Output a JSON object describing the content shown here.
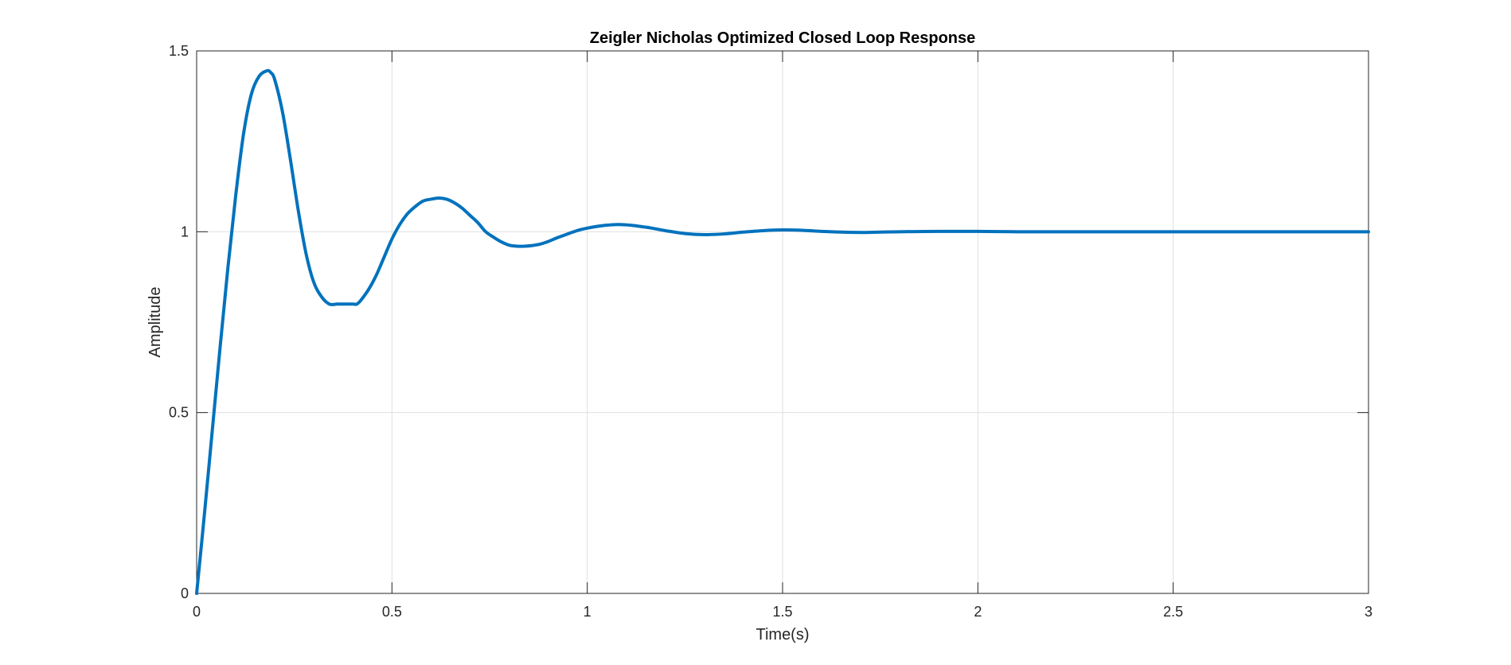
{
  "chart_data": {
    "type": "line",
    "title": "Zeigler Nicholas Optimized Closed Loop Response",
    "xlabel": "Time(s)",
    "ylabel": "Amplitude",
    "xlim": [
      0,
      3
    ],
    "ylim": [
      0,
      1.5
    ],
    "xticks": [
      0,
      0.5,
      1,
      1.5,
      2,
      2.5,
      3
    ],
    "xtick_labels": [
      "0",
      "0.5",
      "1",
      "1.5",
      "2",
      "2.5",
      "3"
    ],
    "yticks": [
      0,
      0.5,
      1,
      1.5
    ],
    "ytick_labels": [
      "0",
      "0.5",
      "1",
      "1.5"
    ],
    "grid": true,
    "line_color": "#0072BD",
    "series": [
      {
        "x": [
          0,
          0.02,
          0.04,
          0.06,
          0.08,
          0.1,
          0.12,
          0.14,
          0.16,
          0.18,
          0.19,
          0.2,
          0.22,
          0.24,
          0.26,
          0.28,
          0.3,
          0.32,
          0.34,
          0.36,
          0.38,
          0.4,
          0.41,
          0.42,
          0.44,
          0.46,
          0.48,
          0.5,
          0.52,
          0.54,
          0.56,
          0.58,
          0.6,
          0.62,
          0.64,
          0.66,
          0.68,
          0.7,
          0.72,
          0.74,
          0.76,
          0.78,
          0.8,
          0.82,
          0.84,
          0.86,
          0.88,
          0.9,
          0.92,
          0.94,
          0.96,
          0.98,
          1.0,
          1.02,
          1.04,
          1.06,
          1.08,
          1.1,
          1.12,
          1.14,
          1.16,
          1.18,
          1.2,
          1.25,
          1.3,
          1.35,
          1.4,
          1.45,
          1.5,
          1.55,
          1.6,
          1.65,
          1.7,
          1.75,
          1.8,
          1.9,
          2.0,
          2.1,
          2.2,
          2.4,
          2.6,
          2.8,
          3.0
        ],
        "y": [
          0,
          0.22,
          0.45,
          0.68,
          0.9,
          1.1,
          1.27,
          1.38,
          1.43,
          1.445,
          1.44,
          1.42,
          1.33,
          1.2,
          1.06,
          0.94,
          0.86,
          0.82,
          0.8,
          0.8,
          0.8,
          0.8,
          0.8,
          0.81,
          0.84,
          0.88,
          0.93,
          0.98,
          1.02,
          1.05,
          1.07,
          1.085,
          1.09,
          1.093,
          1.09,
          1.08,
          1.065,
          1.045,
          1.025,
          1.0,
          0.985,
          0.972,
          0.963,
          0.96,
          0.96,
          0.962,
          0.966,
          0.973,
          0.982,
          0.99,
          0.998,
          1.005,
          1.01,
          1.014,
          1.017,
          1.019,
          1.02,
          1.019,
          1.017,
          1.014,
          1.011,
          1.007,
          1.003,
          0.995,
          0.992,
          0.994,
          0.999,
          1.003,
          1.005,
          1.004,
          1.001,
          0.999,
          0.998,
          0.999,
          1.0,
          1.001,
          1.001,
          1.0,
          1.0,
          1.0,
          1.0,
          1.0,
          1.0
        ]
      }
    ]
  }
}
